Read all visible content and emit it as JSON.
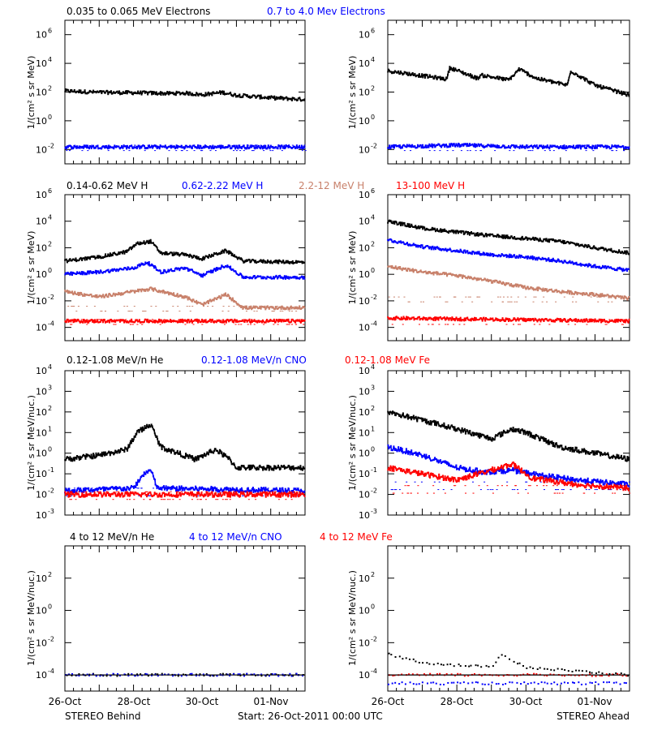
{
  "colors": {
    "black": "#000000",
    "blue": "#0000ff",
    "tan": "#c8806a",
    "red": "#ff0000"
  },
  "footer": {
    "left": "STEREO Behind",
    "center": "Start: 26-Oct-2011 00:00 UTC",
    "right": "STEREO Ahead"
  },
  "x_axis": {
    "ticks": [
      0,
      2,
      4,
      6
    ],
    "tick_labels": [
      "26-Oct",
      "28-Oct",
      "30-Oct",
      "01-Nov"
    ],
    "range_days": [
      0,
      7
    ]
  },
  "rows": [
    {
      "legend": [
        {
          "text": "0.035 to 0.065 MeV Electrons",
          "color": "black"
        },
        {
          "text": "0.7 to 4.0 Mev Electrons",
          "color": "blue"
        }
      ],
      "ylabel": "1/(cm² s sr MeV)",
      "y_exp_range": [
        -3,
        7
      ],
      "y_ticks": [
        -2,
        0,
        2,
        4,
        6
      ]
    },
    {
      "legend": [
        {
          "text": "0.14-0.62 MeV H",
          "color": "black"
        },
        {
          "text": "0.62-2.22 MeV H",
          "color": "blue"
        },
        {
          "text": "2.2-12 MeV H",
          "color": "tan"
        },
        {
          "text": "13-100 MeV H",
          "color": "red"
        }
      ],
      "ylabel": "1/(cm² s sr MeV)",
      "y_exp_range": [
        -5,
        6
      ],
      "y_ticks": [
        -4,
        -2,
        0,
        2,
        4,
        6
      ]
    },
    {
      "legend": [
        {
          "text": "0.12-1.08 MeV/n He",
          "color": "black"
        },
        {
          "text": "0.12-1.08 MeV/n CNO",
          "color": "blue"
        },
        {
          "text": "0.12-1.08 MeV Fe",
          "color": "red"
        }
      ],
      "ylabel": "1/(cm² s sr MeV/nuc.)",
      "y_exp_range": [
        -3,
        4
      ],
      "y_ticks": [
        -3,
        -2,
        -1,
        0,
        1,
        2,
        3,
        4
      ]
    },
    {
      "legend": [
        {
          "text": "4 to 12 MeV/n He",
          "color": "black"
        },
        {
          "text": "4 to 12 MeV/n CNO",
          "color": "blue"
        },
        {
          "text": "4 to 12 MeV Fe",
          "color": "red"
        }
      ],
      "ylabel": "1/(cm² s sr MeV/nuc.)",
      "y_exp_range": [
        -5,
        4
      ],
      "y_ticks": [
        -4,
        -2,
        0,
        2
      ]
    }
  ],
  "chart_data": [
    {
      "panel": "electrons-behind",
      "type": "line",
      "x_unit": "days since 26-Oct-2011",
      "y_scale": "log",
      "series": [
        {
          "name": "0.035 to 0.065 MeV Electrons",
          "color": "black",
          "points": [
            [
              0,
              120
            ],
            [
              1,
              95
            ],
            [
              2,
              90
            ],
            [
              3,
              80
            ],
            [
              3.5,
              85
            ],
            [
              4,
              65
            ],
            [
              4.6,
              95
            ],
            [
              5,
              60
            ],
            [
              6,
              40
            ],
            [
              7,
              30
            ]
          ]
        },
        {
          "name": "0.7 to 4.0 Mev Electrons",
          "color": "blue",
          "points": [
            [
              0,
              0.015
            ],
            [
              2,
              0.015
            ],
            [
              4,
              0.015
            ],
            [
              7,
              0.015
            ]
          ]
        }
      ]
    },
    {
      "panel": "electrons-ahead",
      "type": "line",
      "x_unit": "days since 26-Oct-2011",
      "y_scale": "log",
      "series": [
        {
          "name": "0.035 to 0.065 MeV Electrons",
          "color": "black",
          "points": [
            [
              0,
              3000
            ],
            [
              1.7,
              800
            ],
            [
              1.8,
              5000
            ],
            [
              2.6,
              900
            ],
            [
              2.7,
              1500
            ],
            [
              3.5,
              700
            ],
            [
              3.7,
              2000
            ],
            [
              3.8,
              4000
            ],
            [
              4.3,
              900
            ],
            [
              5.2,
              300
            ],
            [
              5.3,
              3000
            ],
            [
              6,
              300
            ],
            [
              7,
              60
            ]
          ]
        },
        {
          "name": "0.7 to 4.0 Mev Electrons",
          "color": "blue",
          "points": [
            [
              0,
              0.015
            ],
            [
              2,
              0.02
            ],
            [
              4,
              0.015
            ],
            [
              7,
              0.015
            ]
          ]
        }
      ]
    },
    {
      "panel": "protons-behind",
      "type": "line",
      "x_unit": "days since 26-Oct-2011",
      "y_scale": "log",
      "series": [
        {
          "name": "0.14-0.62 MeV H",
          "color": "black",
          "points": [
            [
              0,
              10
            ],
            [
              1,
              20
            ],
            [
              1.8,
              50
            ],
            [
              2.1,
              200
            ],
            [
              2.5,
              300
            ],
            [
              2.8,
              40
            ],
            [
              3.5,
              30
            ],
            [
              4,
              15
            ],
            [
              4.7,
              60
            ],
            [
              5.2,
              10
            ],
            [
              7,
              8
            ]
          ]
        },
        {
          "name": "0.62-2.22 MeV H",
          "color": "blue",
          "points": [
            [
              0,
              1
            ],
            [
              1,
              1.5
            ],
            [
              2,
              3
            ],
            [
              2.4,
              8
            ],
            [
              2.8,
              1.5
            ],
            [
              3.5,
              3
            ],
            [
              4,
              0.8
            ],
            [
              4.7,
              5
            ],
            [
              5.2,
              0.6
            ],
            [
              7,
              0.6
            ]
          ]
        },
        {
          "name": "2.2-12 MeV H",
          "color": "tan",
          "points": [
            [
              0,
              0.05
            ],
            [
              1,
              0.02
            ],
            [
              2.5,
              0.08
            ],
            [
              3.5,
              0.02
            ],
            [
              4,
              0.005
            ],
            [
              4.7,
              0.03
            ],
            [
              5.2,
              0.003
            ],
            [
              7,
              0.003
            ]
          ]
        },
        {
          "name": "13-100 MeV H",
          "color": "red",
          "points": [
            [
              0,
              0.0003
            ],
            [
              7,
              0.0003
            ]
          ]
        }
      ]
    },
    {
      "panel": "protons-ahead",
      "type": "line",
      "x_unit": "days since 26-Oct-2011",
      "y_scale": "log",
      "series": [
        {
          "name": "0.14-0.62 MeV H",
          "color": "black",
          "points": [
            [
              0,
              10000
            ],
            [
              1,
              3000
            ],
            [
              2,
              1500
            ],
            [
              3,
              800
            ],
            [
              4,
              500
            ],
            [
              5,
              300
            ],
            [
              6,
              100
            ],
            [
              7,
              40
            ]
          ]
        },
        {
          "name": "0.62-2.22 MeV H",
          "color": "blue",
          "points": [
            [
              0,
              400
            ],
            [
              1,
              120
            ],
            [
              2,
              60
            ],
            [
              3,
              30
            ],
            [
              4,
              20
            ],
            [
              5,
              10
            ],
            [
              6,
              4
            ],
            [
              7,
              2
            ]
          ]
        },
        {
          "name": "2.2-12 MeV H",
          "color": "tan",
          "points": [
            [
              0,
              4
            ],
            [
              1,
              1.5
            ],
            [
              2,
              0.8
            ],
            [
              3,
              0.3
            ],
            [
              4,
              0.1
            ],
            [
              5,
              0.05
            ],
            [
              6,
              0.03
            ],
            [
              7,
              0.015
            ]
          ]
        },
        {
          "name": "13-100 MeV H",
          "color": "red",
          "points": [
            [
              0,
              0.0005
            ],
            [
              7,
              0.0003
            ]
          ]
        }
      ]
    },
    {
      "panel": "heavy-low-behind",
      "type": "line",
      "x_unit": "days since 26-Oct-2011",
      "y_scale": "log",
      "series": [
        {
          "name": "0.12-1.08 MeV/n He",
          "color": "black",
          "points": [
            [
              0,
              0.5
            ],
            [
              1,
              0.8
            ],
            [
              1.8,
              1.5
            ],
            [
              2.1,
              10
            ],
            [
              2.5,
              25
            ],
            [
              2.8,
              2
            ],
            [
              3.3,
              1
            ],
            [
              3.8,
              0.5
            ],
            [
              4.4,
              1.5
            ],
            [
              4.8,
              0.5
            ],
            [
              5,
              0.2
            ],
            [
              7,
              0.2
            ]
          ]
        },
        {
          "name": "0.12-1.08 MeV/n CNO",
          "color": "blue",
          "points": [
            [
              0,
              0.015
            ],
            [
              2.0,
              0.02
            ],
            [
              2.3,
              0.1
            ],
            [
              2.5,
              0.15
            ],
            [
              2.7,
              0.02
            ],
            [
              7,
              0.015
            ]
          ]
        },
        {
          "name": "0.12-1.08 MeV Fe",
          "color": "red",
          "points": [
            [
              0,
              0.01
            ],
            [
              7,
              0.01
            ]
          ]
        }
      ]
    },
    {
      "panel": "heavy-low-ahead",
      "type": "line",
      "x_unit": "days since 26-Oct-2011",
      "y_scale": "log",
      "series": [
        {
          "name": "0.12-1.08 MeV/n He",
          "color": "black",
          "points": [
            [
              0,
              100
            ],
            [
              1,
              40
            ],
            [
              2,
              15
            ],
            [
              3,
              5
            ],
            [
              3.6,
              15
            ],
            [
              4,
              10
            ],
            [
              5,
              2
            ],
            [
              6,
              1
            ],
            [
              7,
              0.5
            ]
          ]
        },
        {
          "name": "0.12-1.08 MeV/n CNO",
          "color": "blue",
          "points": [
            [
              0,
              2
            ],
            [
              1,
              0.8
            ],
            [
              2,
              0.2
            ],
            [
              2.8,
              0.12
            ],
            [
              3.6,
              0.15
            ],
            [
              4.5,
              0.08
            ],
            [
              5.5,
              0.05
            ],
            [
              7,
              0.03
            ]
          ]
        },
        {
          "name": "0.12-1.08 MeV Fe",
          "color": "red",
          "points": [
            [
              0,
              0.2
            ],
            [
              1,
              0.1
            ],
            [
              2,
              0.05
            ],
            [
              3.0,
              0.15
            ],
            [
              3.6,
              0.3
            ],
            [
              4.2,
              0.06
            ],
            [
              5.5,
              0.03
            ],
            [
              7,
              0.02
            ]
          ]
        }
      ]
    },
    {
      "panel": "heavy-high-behind",
      "type": "scatter",
      "x_unit": "days since 26-Oct-2011",
      "y_scale": "log",
      "series": [
        {
          "name": "4 to 12 MeV/n He",
          "color": "black",
          "points": [
            [
              0,
              0.0001
            ],
            [
              3,
              0.0001
            ],
            [
              7,
              0.0001
            ]
          ]
        },
        {
          "name": "4 to 12 MeV/n CNO",
          "color": "blue",
          "points": [
            [
              0,
              0.0001
            ],
            [
              7,
              0.0001
            ]
          ]
        },
        {
          "name": "4 to 12 MeV Fe",
          "color": "red",
          "points": []
        }
      ]
    },
    {
      "panel": "heavy-high-ahead",
      "type": "scatter",
      "x_unit": "days since 26-Oct-2011",
      "y_scale": "log",
      "series": [
        {
          "name": "4 to 12 MeV/n He",
          "color": "black",
          "points": [
            [
              0,
              0.002
            ],
            [
              1,
              0.0006
            ],
            [
              2,
              0.0004
            ],
            [
              3,
              0.0003
            ],
            [
              3.3,
              0.002
            ],
            [
              4,
              0.0003
            ],
            [
              5,
              0.0002
            ],
            [
              7,
              0.0001
            ]
          ]
        },
        {
          "name": "4 to 12 MeV/n CNO",
          "color": "blue",
          "points": [
            [
              0,
              3e-05
            ],
            [
              7,
              3e-05
            ]
          ]
        },
        {
          "name": "4 to 12 MeV Fe",
          "color": "red",
          "points": [
            [
              1,
              0.0001
            ],
            [
              4,
              0.0001
            ]
          ]
        }
      ]
    }
  ]
}
